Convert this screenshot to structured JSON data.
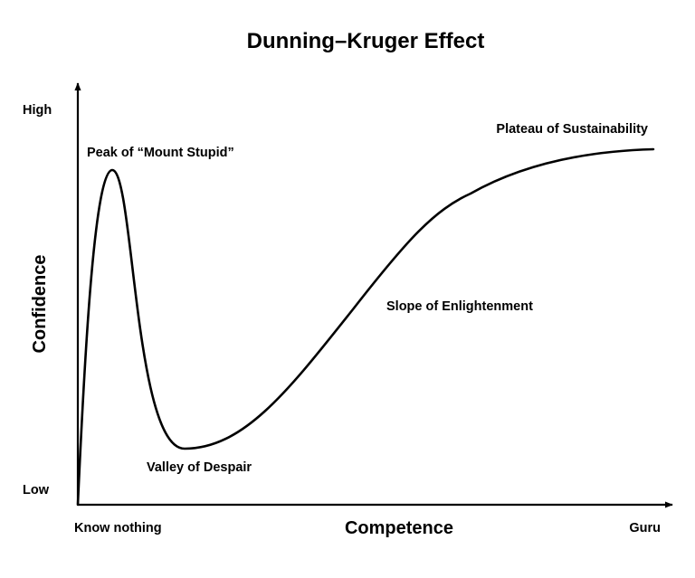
{
  "title": "Dunning–Kruger Effect",
  "axes": {
    "x_label": "Competence",
    "y_label": "Confidence",
    "x_ticks": [
      "Know nothing",
      "Guru"
    ],
    "y_ticks": [
      "High",
      "Low"
    ]
  },
  "stages": {
    "peak": "Peak of “Mount Stupid”",
    "valley": "Valley of Despair",
    "slope": "Slope of Enlightenment",
    "plateau": "Plateau of Sustainability"
  },
  "colors": {
    "ink": "#000000",
    "background": "#ffffff"
  }
}
